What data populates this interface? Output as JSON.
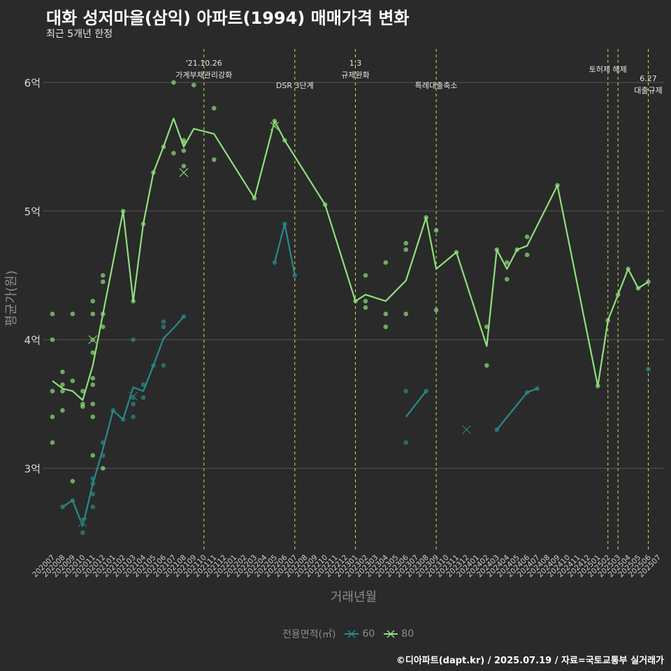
{
  "title": "대화 성저마을(삼익) 아파트(1994) 매매가격 변화",
  "subtitle": "최근 5개년 한정",
  "caption": "©디아파트(dapt.kr) / 2025.07.19 / 자료=국토교통부 실거래가",
  "legend": {
    "title": "전용면적(㎡)",
    "items": [
      {
        "label": "60",
        "color": "#2a8a8a"
      },
      {
        "label": "80",
        "color": "#8fe07a"
      }
    ]
  },
  "chart_data": {
    "type": "line",
    "xlabel": "거래년월",
    "ylabel": "평균가(원)",
    "categories": [
      "202007",
      "202008",
      "202009",
      "202010",
      "202011",
      "202012",
      "202101",
      "202102",
      "202103",
      "202104",
      "202105",
      "202106",
      "202107",
      "202108",
      "202109",
      "202110",
      "202111",
      "202112",
      "202201",
      "202202",
      "202203",
      "202204",
      "202205",
      "202206",
      "202207",
      "202208",
      "202209",
      "202210",
      "202211",
      "202212",
      "202301",
      "202302",
      "202303",
      "202304",
      "202305",
      "202306",
      "202307",
      "202308",
      "202309",
      "202310",
      "202311",
      "202312",
      "202401",
      "202402",
      "202403",
      "202404",
      "202405",
      "202406",
      "202407",
      "202408",
      "202409",
      "202410",
      "202411",
      "202412",
      "202501",
      "202502",
      "202503",
      "202504",
      "202505",
      "202506",
      "202507"
    ],
    "ylim": [
      2.3,
      6.3
    ],
    "yticks": [
      {
        "v": 3,
        "label": "3억"
      },
      {
        "v": 4,
        "label": "4억"
      },
      {
        "v": 5,
        "label": "5억"
      },
      {
        "v": 6,
        "label": "6억"
      }
    ],
    "series": [
      {
        "name": "60",
        "color": "#2a8a8a",
        "line_segments": [
          [
            [
              "202008",
              2.7
            ],
            [
              "202009",
              2.75
            ],
            [
              "202010",
              2.55
            ],
            [
              "202011",
              2.88
            ],
            [
              "202012",
              3.15
            ],
            [
              "202101",
              3.45
            ],
            [
              "202102",
              3.38
            ],
            [
              "202103",
              3.63
            ],
            [
              "202104",
              3.6
            ],
            [
              "202105",
              3.8
            ],
            [
              "202106",
              4.01
            ],
            [
              "202107",
              4.09
            ],
            [
              "202108",
              4.18
            ]
          ],
          [
            [
              "202205",
              4.6
            ],
            [
              "202206",
              4.9
            ],
            [
              "202207",
              4.5
            ]
          ],
          [
            [
              "202306",
              3.4
            ],
            [
              "202308",
              3.6
            ]
          ],
          [
            [
              "202403",
              3.3
            ],
            [
              "202406",
              3.59
            ],
            [
              "202407",
              3.62
            ]
          ]
        ],
        "points": [
          [
            "202008",
            2.7
          ],
          [
            "202009",
            2.75
          ],
          [
            "202010",
            2.5
          ],
          [
            "202010",
            2.6
          ],
          [
            "202011",
            2.92
          ],
          [
            "202011",
            2.8
          ],
          [
            "202011",
            2.7
          ],
          [
            "202011",
            2.88
          ],
          [
            "202012",
            3.2
          ],
          [
            "202012",
            3.1
          ],
          [
            "202101",
            3.45
          ],
          [
            "202102",
            3.38
          ],
          [
            "202103",
            4.0
          ],
          [
            "202103",
            3.5
          ],
          [
            "202103",
            3.4
          ],
          [
            "202103",
            3.55
          ],
          [
            "202104",
            3.55
          ],
          [
            "202104",
            3.65
          ],
          [
            "202105",
            3.8
          ],
          [
            "202106",
            3.8
          ],
          [
            "202106",
            4.1
          ],
          [
            "202106",
            4.14
          ],
          [
            "202108",
            4.18
          ],
          [
            "202205",
            4.6
          ],
          [
            "202206",
            4.9
          ],
          [
            "202207",
            4.5
          ],
          [
            "202306",
            3.6
          ],
          [
            "202306",
            3.2
          ],
          [
            "202308",
            3.6
          ],
          [
            "202403",
            3.3
          ],
          [
            "202406",
            3.59
          ],
          [
            "202407",
            3.62
          ],
          [
            "202506",
            3.77
          ]
        ],
        "cross_markers": [
          [
            "202010",
            2.58
          ],
          [
            "202103",
            3.56
          ],
          [
            "202312",
            3.3
          ]
        ]
      },
      {
        "name": "80",
        "color": "#8fe07a",
        "line_segments": [
          [
            [
              "202007",
              3.68
            ],
            [
              "202008",
              3.62
            ],
            [
              "202009",
              3.6
            ],
            [
              "202010",
              3.53
            ],
            [
              "202011",
              3.8
            ],
            [
              "202012",
              4.2
            ],
            [
              "202102",
              5.0
            ],
            [
              "202103",
              4.3
            ],
            [
              "202104",
              4.9
            ],
            [
              "202105",
              5.3
            ],
            [
              "202106",
              5.5
            ],
            [
              "202107",
              5.72
            ],
            [
              "202108",
              5.5
            ],
            [
              "202109",
              5.64
            ],
            [
              "202111",
              5.6
            ],
            [
              "202203",
              5.1
            ],
            [
              "202205",
              5.7
            ],
            [
              "202206",
              5.55
            ],
            [
              "202210",
              5.05
            ],
            [
              "202301",
              4.3
            ],
            [
              "202302",
              4.35
            ],
            [
              "202304",
              4.3
            ],
            [
              "202306",
              4.46
            ],
            [
              "202308",
              4.95
            ],
            [
              "202309",
              4.55
            ],
            [
              "202311",
              4.68
            ],
            [
              "202402",
              3.95
            ],
            [
              "202403",
              4.7
            ],
            [
              "202404",
              4.55
            ],
            [
              "202405",
              4.7
            ],
            [
              "202406",
              4.73
            ],
            [
              "202409",
              5.2
            ],
            [
              "202501",
              3.64
            ],
            [
              "202502",
              4.15
            ],
            [
              "202503",
              4.35
            ],
            [
              "202504",
              4.55
            ],
            [
              "202505",
              4.4
            ],
            [
              "202506",
              4.45
            ]
          ]
        ],
        "points": [
          [
            "202007",
            4.2
          ],
          [
            "202007",
            4.0
          ],
          [
            "202007",
            3.6
          ],
          [
            "202007",
            3.4
          ],
          [
            "202007",
            3.2
          ],
          [
            "202008",
            3.75
          ],
          [
            "202008",
            3.6
          ],
          [
            "202008",
            3.45
          ],
          [
            "202008",
            3.65
          ],
          [
            "202009",
            4.2
          ],
          [
            "202009",
            3.68
          ],
          [
            "202009",
            2.9
          ],
          [
            "202010",
            3.5
          ],
          [
            "202010",
            3.48
          ],
          [
            "202010",
            3.6
          ],
          [
            "202011",
            4.3
          ],
          [
            "202011",
            4.2
          ],
          [
            "202011",
            4.0
          ],
          [
            "202011",
            3.9
          ],
          [
            "202011",
            3.7
          ],
          [
            "202011",
            3.65
          ],
          [
            "202011",
            3.5
          ],
          [
            "202011",
            3.4
          ],
          [
            "202011",
            3.1
          ],
          [
            "202012",
            4.5
          ],
          [
            "202012",
            4.45
          ],
          [
            "202012",
            4.2
          ],
          [
            "202012",
            4.1
          ],
          [
            "202012",
            3.0
          ],
          [
            "202102",
            5.0
          ],
          [
            "202103",
            4.3
          ],
          [
            "202104",
            4.9
          ],
          [
            "202105",
            5.3
          ],
          [
            "202106",
            5.5
          ],
          [
            "202107",
            6.0
          ],
          [
            "202107",
            5.45
          ],
          [
            "202108",
            5.55
          ],
          [
            "202108",
            5.53
          ],
          [
            "202108",
            5.47
          ],
          [
            "202108",
            5.35
          ],
          [
            "202109",
            5.98
          ],
          [
            "202111",
            5.8
          ],
          [
            "202111",
            5.4
          ],
          [
            "202203",
            5.1
          ],
          [
            "202205",
            5.7
          ],
          [
            "202206",
            5.55
          ],
          [
            "202210",
            5.05
          ],
          [
            "202301",
            4.3
          ],
          [
            "202302",
            4.5
          ],
          [
            "202302",
            4.3
          ],
          [
            "202302",
            4.25
          ],
          [
            "202304",
            4.6
          ],
          [
            "202304",
            4.2
          ],
          [
            "202304",
            4.1
          ],
          [
            "202306",
            4.75
          ],
          [
            "202306",
            4.7
          ],
          [
            "202306",
            4.2
          ],
          [
            "202308",
            4.95
          ],
          [
            "202309",
            4.85
          ],
          [
            "202309",
            4.23
          ],
          [
            "202311",
            4.68
          ],
          [
            "202402",
            4.1
          ],
          [
            "202402",
            3.8
          ],
          [
            "202403",
            4.7
          ],
          [
            "202404",
            4.6
          ],
          [
            "202404",
            4.47
          ],
          [
            "202405",
            4.7
          ],
          [
            "202406",
            4.8
          ],
          [
            "202406",
            4.66
          ],
          [
            "202409",
            5.2
          ],
          [
            "202501",
            3.64
          ],
          [
            "202502",
            4.15
          ],
          [
            "202503",
            4.35
          ],
          [
            "202504",
            4.55
          ],
          [
            "202505",
            4.4
          ],
          [
            "202506",
            4.45
          ]
        ],
        "cross_markers": [
          [
            "202011",
            4.0
          ],
          [
            "202108",
            5.3
          ],
          [
            "202205",
            5.66
          ]
        ]
      }
    ],
    "annotations": [
      {
        "x": "202110",
        "lines": [
          "'21.10.26",
          "가계부채관리강화"
        ]
      },
      {
        "x": "202207",
        "lines": [
          "DSR 3단계"
        ]
      },
      {
        "x": "202301",
        "lines": [
          "1.3",
          "규제완화"
        ]
      },
      {
        "x": "202309",
        "lines": [
          "특례대출축소"
        ]
      },
      {
        "x": "202502",
        "lines": [
          "토허제 해제"
        ]
      },
      {
        "x": "202503",
        "lines": []
      },
      {
        "x": "202506",
        "lines": [
          "6.27",
          "대출규제"
        ]
      }
    ]
  }
}
